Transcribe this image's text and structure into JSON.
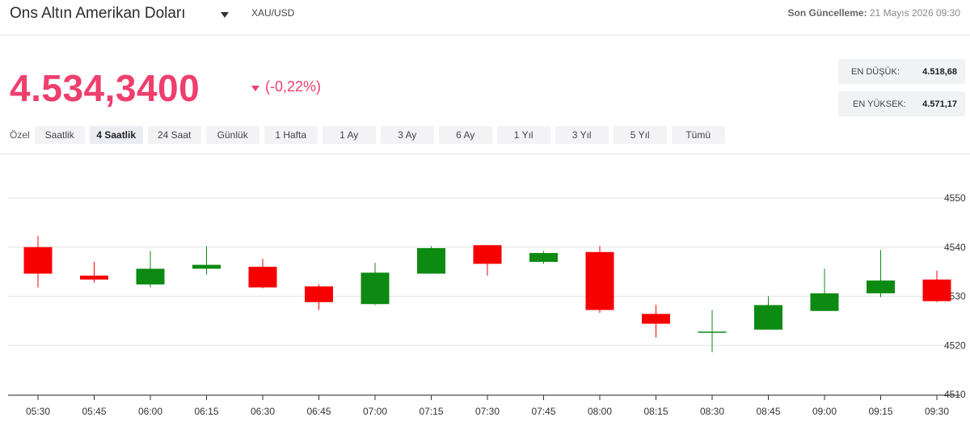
{
  "header": {
    "title": "Ons Altın Amerikan Doları",
    "symbol": "XAU/USD",
    "updated_label": "Son Güncelleme:",
    "updated_value": "21 Mayıs 2026 09:30"
  },
  "quote": {
    "price": "4.534,3400",
    "change": "(-0,22%)",
    "direction": "down"
  },
  "range": {
    "low_label": "EN DÜŞÜK:",
    "low_value": "4.518,68",
    "high_label": "EN YÜKSEK:",
    "high_value": "4.571,17"
  },
  "periods": {
    "label": "Özel",
    "items": [
      "Saatlik",
      "4 Saatlik",
      "24 Saat",
      "Günlük",
      "1 Hafta",
      "1 Ay",
      "3 Ay",
      "6 Ay",
      "1 Yıl",
      "3 Yıl",
      "5 Yıl",
      "Tümü"
    ],
    "active": "4 Saatlik"
  },
  "colors": {
    "accent": "#ee3f6d",
    "up": "#0d8a12",
    "down": "#f70000"
  },
  "chart_data": {
    "type": "candlestick",
    "x": [
      "05:30",
      "05:45",
      "06:00",
      "06:15",
      "06:30",
      "06:45",
      "07:00",
      "07:15",
      "07:30",
      "07:45",
      "08:00",
      "08:15",
      "08:30",
      "08:45",
      "09:00",
      "09:15",
      "09:30"
    ],
    "candles": [
      {
        "open": 4540.0,
        "high": 4542.3,
        "low": 4531.8,
        "close": 4534.6
      },
      {
        "open": 4534.2,
        "high": 4537.0,
        "low": 4532.8,
        "close": 4533.4
      },
      {
        "open": 4532.4,
        "high": 4539.2,
        "low": 4531.8,
        "close": 4535.6
      },
      {
        "open": 4535.6,
        "high": 4540.2,
        "low": 4534.4,
        "close": 4536.4
      },
      {
        "open": 4536.0,
        "high": 4537.6,
        "low": 4531.6,
        "close": 4531.8
      },
      {
        "open": 4532.0,
        "high": 4532.4,
        "low": 4527.2,
        "close": 4528.8
      },
      {
        "open": 4528.4,
        "high": 4536.8,
        "low": 4528.2,
        "close": 4534.8
      },
      {
        "open": 4534.6,
        "high": 4540.2,
        "low": 4534.6,
        "close": 4539.8
      },
      {
        "open": 4540.4,
        "high": 4540.4,
        "low": 4534.2,
        "close": 4536.6
      },
      {
        "open": 4537.0,
        "high": 4539.2,
        "low": 4536.6,
        "close": 4538.8
      },
      {
        "open": 4539.0,
        "high": 4540.2,
        "low": 4526.6,
        "close": 4527.2
      },
      {
        "open": 4526.4,
        "high": 4528.2,
        "low": 4521.6,
        "close": 4524.4
      },
      {
        "open": 4522.8,
        "high": 4527.2,
        "low": 4518.6,
        "close": 4522.8
      },
      {
        "open": 4523.2,
        "high": 4530.0,
        "low": 4523.2,
        "close": 4528.2
      },
      {
        "open": 4527.0,
        "high": 4535.6,
        "low": 4527.0,
        "close": 4530.6
      },
      {
        "open": 4530.6,
        "high": 4539.4,
        "low": 4529.8,
        "close": 4533.2
      },
      {
        "open": 4533.4,
        "high": 4535.2,
        "low": 4528.8,
        "close": 4529.0
      }
    ],
    "y_ticks": [
      4510,
      4520,
      4530,
      4540,
      4550
    ],
    "ylim": [
      4510,
      4550
    ],
    "y_axis_position": "right",
    "grid": "horizontal"
  }
}
